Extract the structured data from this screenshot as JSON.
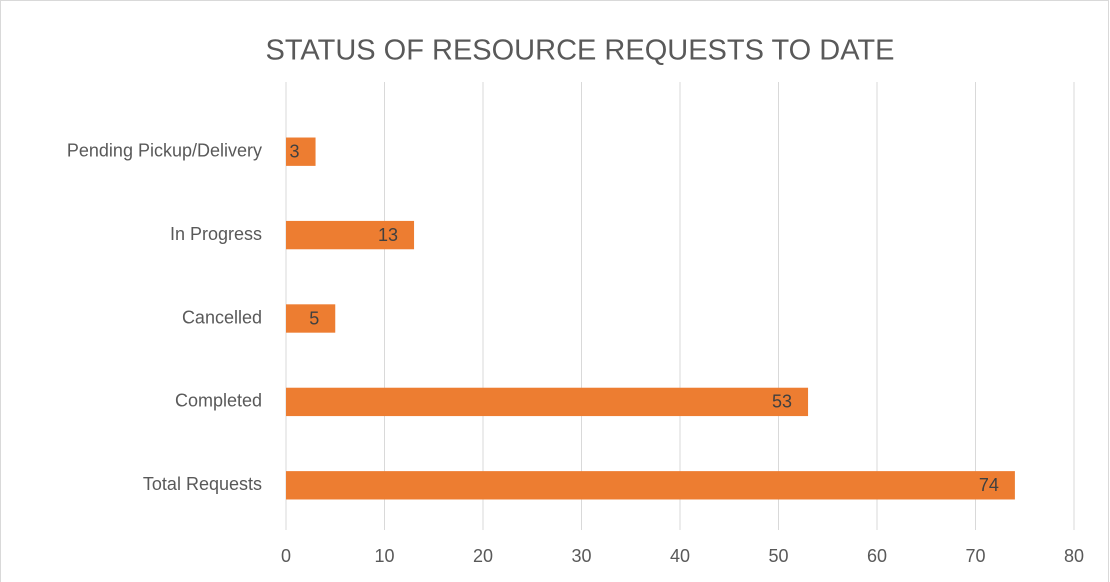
{
  "chart_data": {
    "type": "barh",
    "title": "STATUS OF RESOURCE REQUESTS TO DATE",
    "categories": [
      "Pending Pickup/Delivery",
      "In Progress",
      "Cancelled",
      "Completed",
      "Total Requests"
    ],
    "values": [
      3,
      13,
      5,
      53,
      74
    ],
    "color": "#ed7d31",
    "xlim": [
      0,
      80
    ],
    "xticks": [
      0,
      10,
      20,
      30,
      40,
      50,
      60,
      70,
      80
    ],
    "grid": true
  }
}
